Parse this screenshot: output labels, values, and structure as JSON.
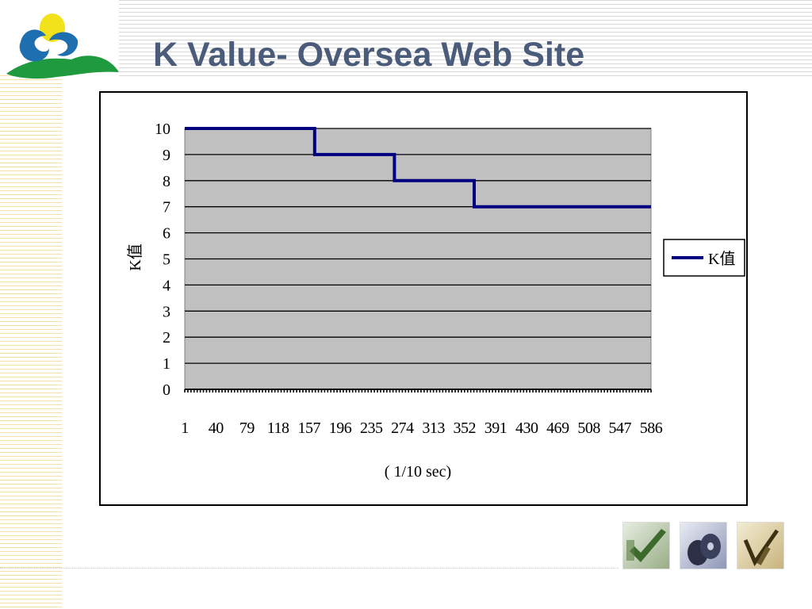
{
  "slide": {
    "title": "K Value- Oversea Web Site"
  },
  "chart_data": {
    "type": "line",
    "ylabel": "K值",
    "xlabel": "( 1/10 sec)",
    "ylim": [
      0,
      10
    ],
    "y_ticks": [
      "0",
      "1",
      "2",
      "3",
      "4",
      "5",
      "6",
      "7",
      "8",
      "9",
      "10"
    ],
    "x_tick_labels": [
      "1",
      "40",
      "79",
      "118",
      "157",
      "196",
      "235",
      "274",
      "313",
      "352",
      "391",
      "430",
      "469",
      "508",
      "547",
      "586"
    ],
    "xlim": [
      1,
      597
    ],
    "grid": true,
    "legend_position": "right",
    "series": [
      {
        "name": "K值",
        "color": "#000080",
        "step_points": [
          [
            1,
            10
          ],
          [
            167,
            10
          ],
          [
            167,
            9
          ],
          [
            269,
            9
          ],
          [
            269,
            8
          ],
          [
            371,
            8
          ],
          [
            371,
            7
          ],
          [
            597,
            7
          ]
        ]
      }
    ],
    "colors": {
      "plot_bg": "#c0c0c0",
      "gridline": "#000000"
    }
  },
  "decor": {
    "icons": [
      "logo-emblem-icon",
      "checkmark-thumbnail-icon",
      "disc-thumbnail-icon",
      "pen-checkmark-thumbnail-icon"
    ]
  }
}
